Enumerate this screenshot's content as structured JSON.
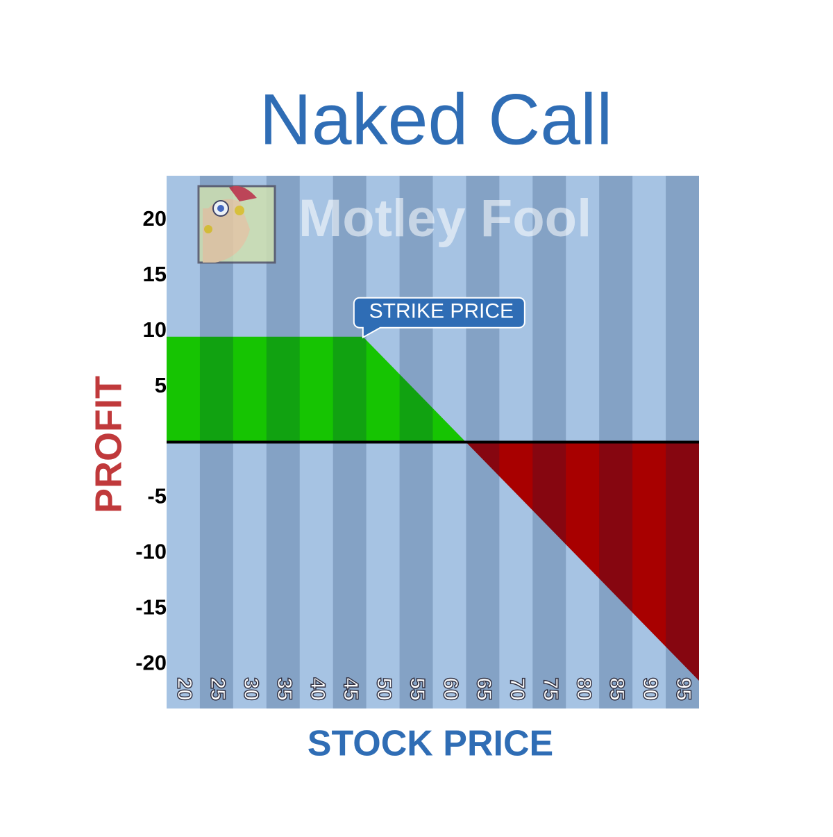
{
  "chart_data": {
    "type": "payoff",
    "title": "Naked Call",
    "watermark": "Motley Fool",
    "xlabel": "STOCK PRICE",
    "ylabel": "PROFIT",
    "annotation": "STRIKE PRICE",
    "x": [
      17.5,
      47,
      97.5
    ],
    "values": [
      9.5,
      9.5,
      -21.5
    ],
    "profit_color": "#16c402",
    "loss_color": "#a80000",
    "stripe_colors": [
      "#a6c3e3",
      "#80aad6"
    ],
    "xlim": [
      17.5,
      97.5
    ],
    "xticks": [
      20,
      25,
      30,
      35,
      40,
      45,
      50,
      55,
      60,
      65,
      70,
      75,
      80,
      85,
      90,
      95
    ],
    "ylim": [
      -24,
      24
    ],
    "yticks": [
      -20,
      -15,
      -10,
      -5,
      5,
      10,
      15,
      20
    ]
  }
}
